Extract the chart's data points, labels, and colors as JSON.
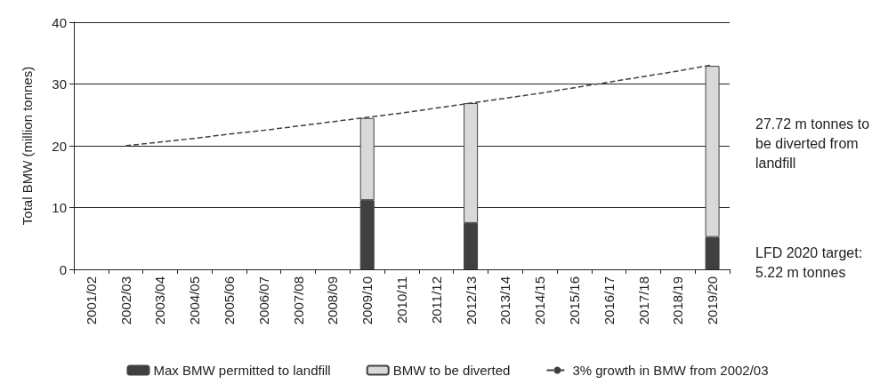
{
  "chart_data": {
    "type": "bar",
    "ylabel": "Total BMW (million tonnes)",
    "categories": [
      "2001/02",
      "2002/03",
      "2003/04",
      "2004/05",
      "2005/06",
      "2006/07",
      "2007/08",
      "2008/09",
      "2009/10",
      "2010/11",
      "2011/12",
      "2012/13",
      "2013/14",
      "2014/15",
      "2015/16",
      "2016/17",
      "2017/18",
      "2018/19",
      "2019/20"
    ],
    "stacked": true,
    "series": [
      {
        "name": "Max BMW permitted to landfill",
        "color": "#404040",
        "values": [
          null,
          null,
          null,
          null,
          null,
          null,
          null,
          null,
          11.2,
          null,
          null,
          7.5,
          null,
          null,
          null,
          null,
          null,
          null,
          5.22
        ]
      },
      {
        "name": "BMW to be diverted",
        "color": "#d9d9d9",
        "values": [
          null,
          null,
          null,
          null,
          null,
          null,
          null,
          null,
          13.3,
          null,
          null,
          19.4,
          null,
          null,
          null,
          null,
          null,
          null,
          27.72
        ]
      },
      {
        "name": "3% growth in BMW from 2002/03",
        "type": "line",
        "color": "#404040",
        "line_style": "dashed",
        "values": [
          null,
          20,
          20.6,
          21.2,
          21.9,
          22.5,
          23.2,
          23.9,
          24.6,
          25.3,
          26.1,
          26.9,
          27.7,
          28.5,
          29.4,
          30.3,
          31.2,
          32.1,
          33.1
        ]
      }
    ],
    "ylim": [
      0,
      40
    ],
    "yticks": [
      0,
      10,
      20,
      30,
      40
    ],
    "grid": "y",
    "legend": "bottom",
    "annotations": [
      "27.72 m tonnes to be diverted from landfill",
      "LFD 2020 target: 5.22 m tonnes"
    ]
  }
}
